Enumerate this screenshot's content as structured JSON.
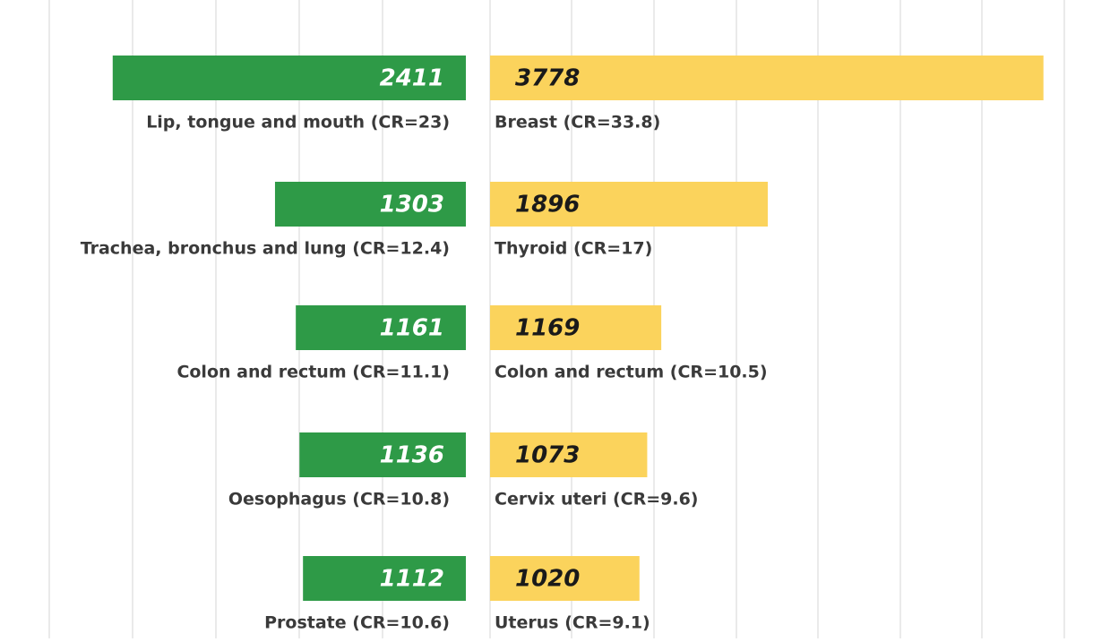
{
  "chart_data": {
    "type": "butterfly",
    "xlim": [
      0,
      4000
    ],
    "grid": true,
    "series": [
      {
        "side": "left",
        "color": "#2e9a47",
        "label_color": "#ffffff",
        "categories": [
          "Lip, tongue and mouth (CR=23)",
          "Trachea, bronchus and lung (CR=12.4)",
          "Colon and rectum (CR=11.1)",
          "Oesophagus (CR=10.8)",
          "Prostate (CR=10.6)"
        ],
        "values": [
          2411,
          1303,
          1161,
          1136,
          1112
        ]
      },
      {
        "side": "right",
        "color": "#fbd35c",
        "label_color": "#1a1a1a",
        "categories": [
          "Breast (CR=33.8)",
          "Thyroid (CR=17)",
          "Colon and rectum (CR=10.5)",
          "Cervix uteri (CR=9.6)",
          "Uterus (CR=9.1)"
        ],
        "values": [
          3778,
          1896,
          1169,
          1073,
          1020
        ]
      }
    ]
  }
}
